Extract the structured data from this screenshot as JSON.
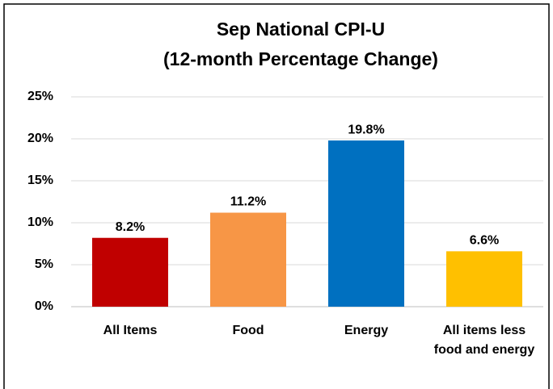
{
  "chart_data": {
    "type": "bar",
    "title": [
      "Sep National CPI-U",
      "(12-month Percentage Change)"
    ],
    "categories": [
      "All Items",
      "Food",
      "Energy",
      "All items less food and energy"
    ],
    "values": [
      8.2,
      11.2,
      19.8,
      6.6
    ],
    "value_labels": [
      "8.2%",
      "11.2%",
      "19.8%",
      "6.6%"
    ],
    "colors": [
      "#c00000",
      "#f79646",
      "#0070c0",
      "#ffc000"
    ],
    "ylim": [
      0,
      25
    ],
    "yticks": [
      {
        "value": 0,
        "label": "0%"
      },
      {
        "value": 5,
        "label": "5%"
      },
      {
        "value": 10,
        "label": "10%"
      },
      {
        "value": 15,
        "label": "15%"
      },
      {
        "value": 20,
        "label": "20%"
      },
      {
        "value": 25,
        "label": "25%"
      }
    ],
    "grid": true
  }
}
